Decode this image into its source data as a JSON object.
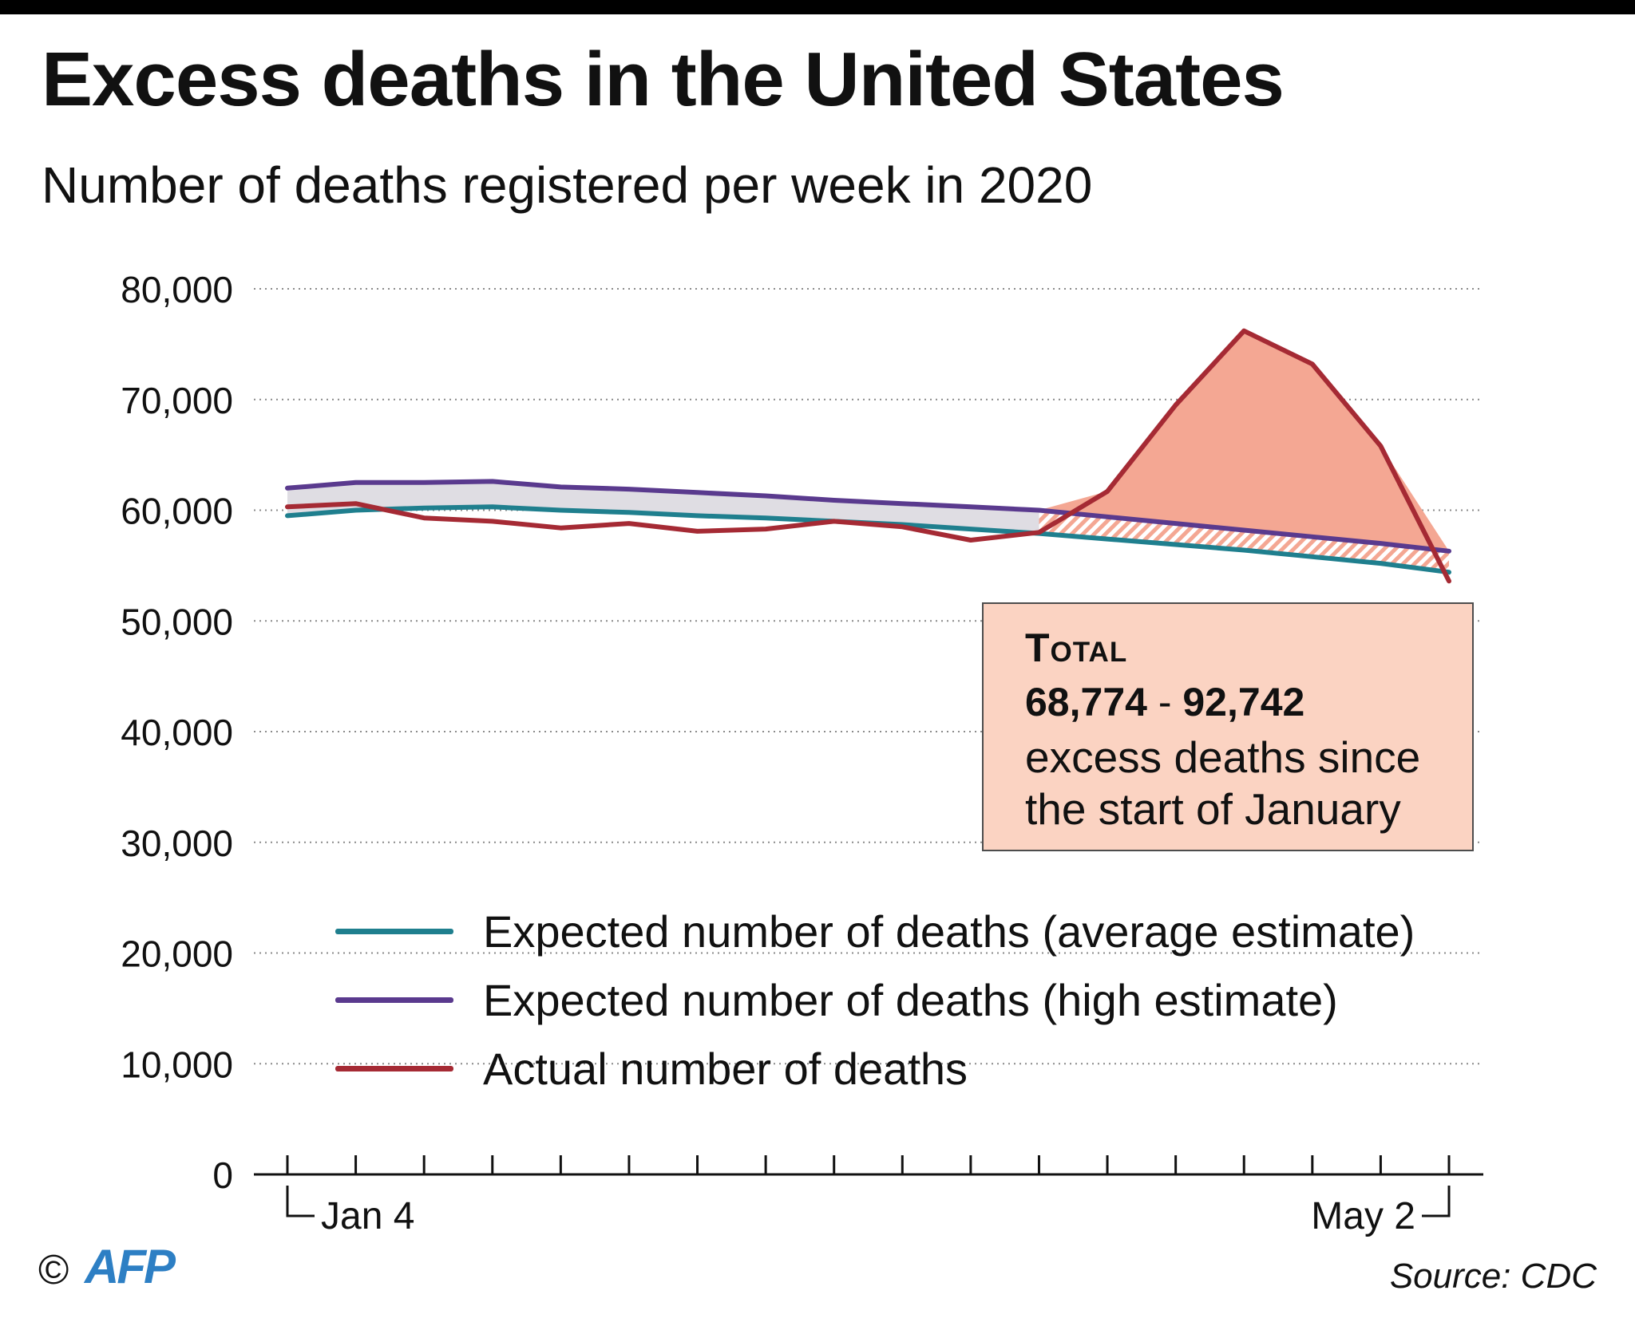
{
  "title": "Excess deaths in the United States",
  "subtitle": "Number of deaths registered per week in 2020",
  "chart_data": {
    "type": "line",
    "title": "Excess deaths in the United States",
    "subtitle": "Number of deaths registered per week in 2020",
    "x_labels": {
      "first": "Jan 4",
      "last": "May 2"
    },
    "week_count": 18,
    "ylim": [
      0,
      80000
    ],
    "yticks": [
      0,
      10000,
      20000,
      30000,
      40000,
      50000,
      60000,
      70000,
      80000
    ],
    "ytick_labels": [
      "0",
      "10,000",
      "20,000",
      "30,000",
      "40,000",
      "50,000",
      "60,000",
      "70,000",
      "80,000"
    ],
    "grid": "horizontal dotted",
    "series": [
      {
        "name": "Expected number of deaths (average estimate)",
        "color": "#1f7f8e",
        "values": [
          59500,
          60000,
          60200,
          60300,
          60000,
          59800,
          59500,
          59300,
          59000,
          58700,
          58300,
          57900,
          57400,
          56900,
          56400,
          55800,
          55200,
          54400
        ]
      },
      {
        "name": "Expected number of deaths (high estimate)",
        "color": "#5a3a8e",
        "values": [
          62000,
          62500,
          62500,
          62600,
          62100,
          61900,
          61600,
          61300,
          60900,
          60600,
          60300,
          60000,
          59400,
          58800,
          58200,
          57600,
          57000,
          56300
        ]
      },
      {
        "name": "Actual number of deaths",
        "color": "#a52a34",
        "values": [
          60300,
          60600,
          59300,
          59000,
          58400,
          58800,
          58100,
          58300,
          59000,
          58500,
          57300,
          58000,
          61700,
          69500,
          76200,
          73200,
          65800,
          53600
        ]
      }
    ],
    "excess_fill_color": "#f4a793",
    "between_estimates_fill_color": "#dfdde3",
    "legend_position": "bottom-center"
  },
  "annotation": {
    "label": "Total",
    "low": "68,774",
    "separator": " - ",
    "high": "92,742",
    "description": "excess deaths since the start of January"
  },
  "footer": {
    "copyright": "©",
    "logo": "AFP",
    "source": "Source: CDC"
  }
}
